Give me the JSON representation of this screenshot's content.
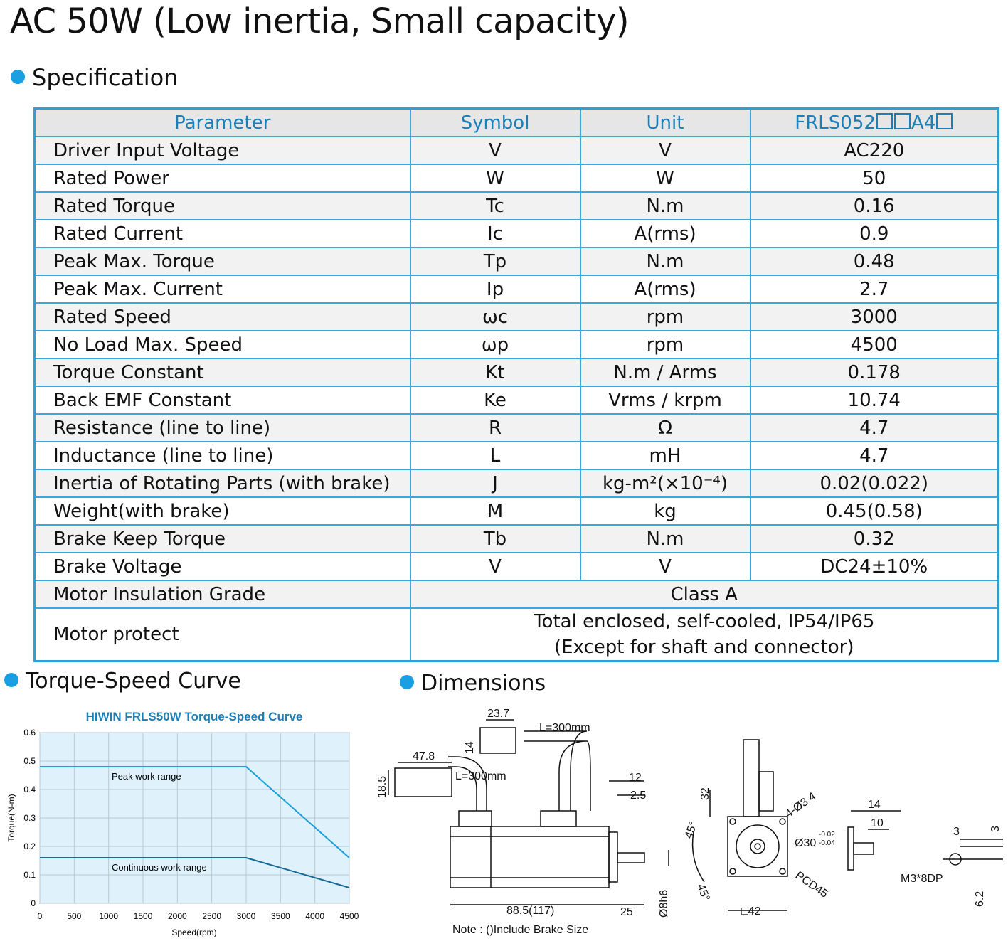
{
  "title": "AC 50W (Low inertia, Small capacity)",
  "spec_heading": "Specification",
  "table": {
    "headers": [
      "Parameter",
      "Symbol",
      "Unit"
    ],
    "model": {
      "prefix": "FRLS052",
      "mid": "A4"
    },
    "rows": [
      {
        "param": "Driver Input Voltage",
        "symbol": "V",
        "unit": "V",
        "value": "AC220"
      },
      {
        "param": "Rated Power",
        "symbol": "W",
        "unit": "W",
        "value": "50"
      },
      {
        "param": "Rated Torque",
        "symbol": "Tc",
        "unit": "N.m",
        "value": "0.16"
      },
      {
        "param": "Rated Current",
        "symbol": "Ic",
        "unit": "A(rms)",
        "value": "0.9"
      },
      {
        "param": "Peak Max. Torque",
        "symbol": "Tp",
        "unit": "N.m",
        "value": "0.48"
      },
      {
        "param": "Peak Max. Current",
        "symbol": "Ip",
        "unit": "A(rms)",
        "value": "2.7"
      },
      {
        "param": "Rated Speed",
        "symbol": "ωc",
        "unit": "rpm",
        "value": "3000"
      },
      {
        "param": "No Load Max. Speed",
        "symbol": "ωp",
        "unit": "rpm",
        "value": "4500"
      },
      {
        "param": "Torque Constant",
        "symbol": "Kt",
        "unit": "N.m / Arms",
        "value": "0.178"
      },
      {
        "param": "Back EMF Constant",
        "symbol": "Ke",
        "unit": "Vrms / krpm",
        "value": "10.74"
      },
      {
        "param": "Resistance (line to line)",
        "symbol": "R",
        "unit": "Ω",
        "value": "4.7"
      },
      {
        "param": "Inductance (line to line)",
        "symbol": "L",
        "unit": "mH",
        "value": "4.7"
      },
      {
        "param": "Inertia of Rotating Parts (with brake)",
        "symbol": "J",
        "unit": "kg-m²(×10⁻⁴)",
        "value": "0.02(0.022)"
      },
      {
        "param": "Weight(with brake)",
        "symbol": "M",
        "unit": "kg",
        "value": "0.45(0.58)"
      },
      {
        "param": "Brake Keep Torque",
        "symbol": "Tb",
        "unit": "N.m",
        "value": "0.32"
      },
      {
        "param": "Brake Voltage",
        "symbol": "V",
        "unit": "V",
        "value": "DC24±10%"
      }
    ],
    "insulation": {
      "param": "Motor Insulation Grade",
      "value": "Class A"
    },
    "protect": {
      "param": "Motor protect",
      "line1": "Total enclosed, self-cooled, IP54/IP65",
      "line2": "(Except for shaft and connector)"
    }
  },
  "torque_heading": "Torque-Speed Curve",
  "dims_heading": "Dimensions",
  "chart_data": {
    "type": "line",
    "title": "HIWIN FRLS50W Torque-Speed Curve",
    "xlabel": "Speed(rpm)",
    "ylabel": "Torque(N-m)",
    "xlim": [
      0,
      4500
    ],
    "ylim": [
      0,
      0.6
    ],
    "xticks": [
      0,
      500,
      1000,
      1500,
      2000,
      2500,
      3000,
      3500,
      4000,
      4500
    ],
    "yticks": [
      0,
      0.1,
      0.2,
      0.3,
      0.4,
      0.5,
      0.6
    ],
    "grid": true,
    "series": [
      {
        "name": "Peak work range",
        "color": "#1a9fd8",
        "x": [
          0,
          3000,
          4500
        ],
        "y": [
          0.48,
          0.48,
          0.16
        ]
      },
      {
        "name": "Continuous work range",
        "color": "#186b96",
        "x": [
          0,
          3000,
          4500
        ],
        "y": [
          0.16,
          0.16,
          0.055
        ]
      }
    ]
  },
  "dimensions": {
    "d_237": "23.7",
    "cable_top": "L=300mm",
    "d_14": "14",
    "d_478": "47.8",
    "cable_left": "L=300mm",
    "d_185": "18.5",
    "d_12": "12",
    "d_25s": "2.5",
    "length": "88.5(117)",
    "shaft": "25",
    "shaft_dia": "Ø8h6",
    "note": "Note : ()Include Brake Size",
    "d_32": "32",
    "deg_top": "45°",
    "deg_bot": "45°",
    "holes": "4-Ø3.4",
    "pilot": "Ø30",
    "tol_up": "-0.02",
    "tol_dn": "-0.04",
    "pcd": "PCD45",
    "flange": "□42",
    "k14": "14",
    "k10": "10",
    "k3a": "3",
    "k3b": "3",
    "tap": "M3*8DP",
    "k62": "6.2"
  }
}
